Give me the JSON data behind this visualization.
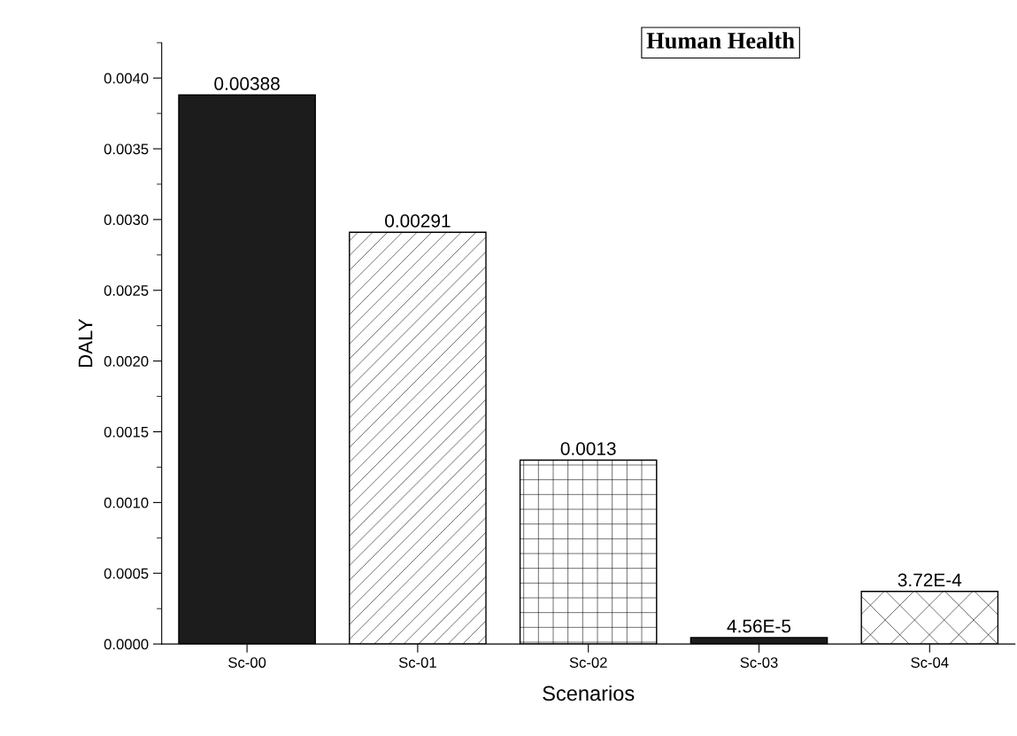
{
  "chart_data": {
    "type": "bar",
    "title": "Human Health",
    "xlabel": "Scenarios",
    "ylabel": "DALY",
    "categories": [
      "Sc-00",
      "Sc-01",
      "Sc-02",
      "Sc-03",
      "Sc-04"
    ],
    "values": [
      0.00388,
      0.00291,
      0.0013,
      4.56e-05,
      0.000372
    ],
    "value_labels": [
      "0.00388",
      "0.00291",
      "0.0013",
      "4.56E-5",
      "3.72E-4"
    ],
    "colors": [
      "#1c1c1c",
      "#ffffff",
      "#ffffff",
      "#1c1c1c",
      "#ffffff"
    ],
    "ylim": [
      0,
      0.00425
    ],
    "yticks": [
      {
        "value": 0,
        "label": "0.0000"
      },
      {
        "value": 0.0005,
        "label": "0.0005"
      },
      {
        "value": 0.001,
        "label": "0.0010"
      },
      {
        "value": 0.0015,
        "label": "0.0015"
      },
      {
        "value": 0.002,
        "label": "0.0020"
      },
      {
        "value": 0.0025,
        "label": "0.0025"
      },
      {
        "value": 0.003,
        "label": "0.0030"
      },
      {
        "value": 0.0035,
        "label": "0.0035"
      },
      {
        "value": 0.004,
        "label": "0.0040"
      }
    ],
    "grid": false,
    "legend": false
  }
}
